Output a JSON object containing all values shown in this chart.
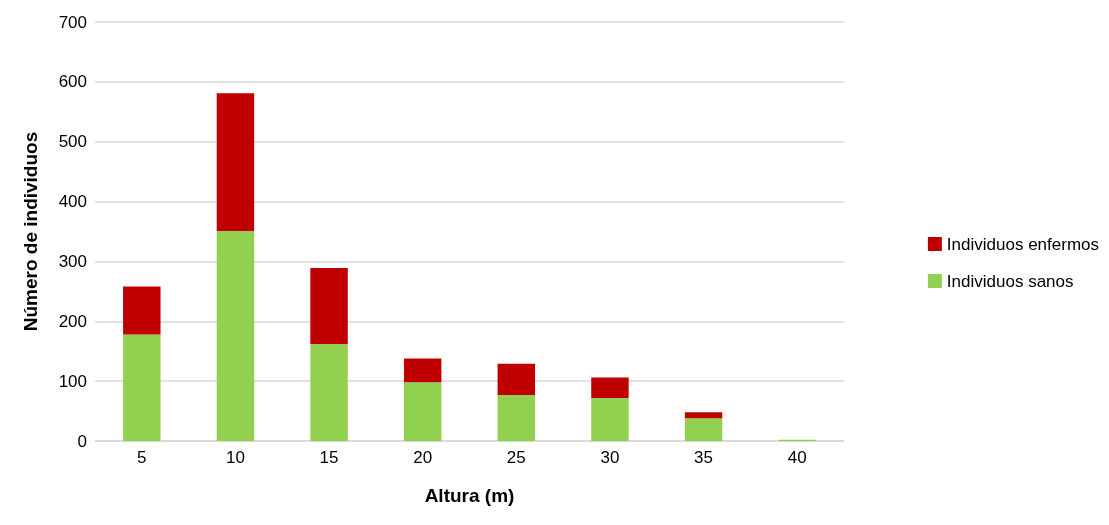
{
  "chart_data": {
    "type": "bar",
    "xlabel": "Altura (m)",
    "ylabel": "Número de individuos",
    "categories": [
      "5",
      "10",
      "15",
      "20",
      "25",
      "30",
      "35",
      "40"
    ],
    "stacked": true,
    "series": [
      {
        "name": "Individuos sanos",
        "color": "#92d050",
        "values": [
          178,
          351,
          162,
          98,
          77,
          72,
          38,
          2
        ]
      },
      {
        "name": "Individuos enfermos",
        "color": "#c00000",
        "values": [
          80,
          230,
          127,
          40,
          52,
          34,
          10,
          0
        ]
      }
    ],
    "ylim": [
      0,
      700
    ],
    "yticks": [
      0,
      100,
      200,
      300,
      400,
      500,
      600,
      700
    ],
    "grid": "y",
    "legend": "right"
  }
}
